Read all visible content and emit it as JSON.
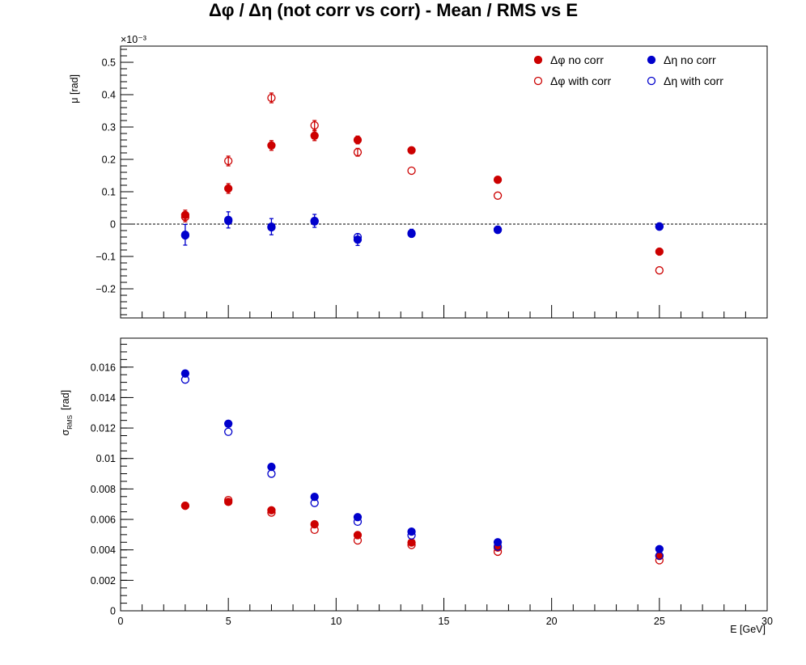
{
  "title": "Δφ / Δη  (not corr vs corr)  -  Mean / RMS vs E",
  "colors": {
    "red": "#cc0000",
    "blue": "#0000cc"
  },
  "chart_data": [
    {
      "type": "scatter",
      "ylabel": "μ  [rad]",
      "yexponent": "×10⁻³",
      "xlim": [
        0,
        30
      ],
      "ylim": [
        -0.29,
        0.55
      ],
      "yticks": [
        -0.2,
        -0.1,
        0,
        0.1,
        0.2,
        0.3,
        0.4,
        0.5
      ],
      "ytick_labels": [
        "−0.2",
        "−0.1",
        "0",
        "0.1",
        "0.2",
        "0.3",
        "0.4",
        "0.5"
      ],
      "reference_line_y": 0,
      "legend": "top-right",
      "series": [
        {
          "name": "Δφ no corr",
          "color": "#cc0000",
          "marker": "filled",
          "x": [
            3,
            5,
            7,
            9,
            11,
            13.5,
            17.5,
            25
          ],
          "y": [
            0.028,
            0.11,
            0.243,
            0.273,
            0.26,
            0.228,
            0.137,
            -0.085
          ],
          "err": [
            0.015,
            0.015,
            0.015,
            0.015,
            0.012,
            0.01,
            0.007,
            0.007
          ]
        },
        {
          "name": "Δφ with corr",
          "color": "#cc0000",
          "marker": "open",
          "x": [
            3,
            5,
            7,
            9,
            11,
            13.5,
            17.5,
            25
          ],
          "y": [
            0.022,
            0.195,
            0.39,
            0.305,
            0.222,
            0.165,
            0.088,
            -0.143
          ],
          "err": [
            0.015,
            0.015,
            0.015,
            0.015,
            0.012,
            0.0,
            0.0,
            0.0
          ]
        },
        {
          "name": "Δη no corr",
          "color": "#0000cc",
          "marker": "filled",
          "x": [
            3,
            5,
            7,
            9,
            11,
            13.5,
            17.5,
            25
          ],
          "y": [
            -0.033,
            0.013,
            -0.008,
            0.01,
            -0.048,
            -0.028,
            -0.017,
            -0.007
          ],
          "err": [
            0.032,
            0.025,
            0.025,
            0.02,
            0.018,
            0.012,
            0.008,
            0.006
          ]
        },
        {
          "name": "Δη with corr",
          "color": "#0000cc",
          "marker": "open",
          "x": [
            3,
            5,
            7,
            9,
            11,
            13.5,
            17.5,
            25
          ],
          "y": [
            -0.035,
            0.01,
            -0.01,
            0.008,
            -0.04,
            -0.03,
            -0.018,
            -0.008
          ],
          "err": [
            0.0,
            0.0,
            0.0,
            0.0,
            0.0,
            0.0,
            0.0,
            0.0
          ]
        }
      ]
    },
    {
      "type": "scatter",
      "ylabel": "σ",
      "ylabel_sub": "RMS",
      "ylabel_unit": "[rad]",
      "xlabel": "E  [GeV]",
      "xlim": [
        0,
        30
      ],
      "ylim": [
        0,
        0.0179
      ],
      "xticks": [
        0,
        5,
        10,
        15,
        20,
        25,
        30
      ],
      "xtick_labels": [
        "0",
        "5",
        "10",
        "15",
        "20",
        "25",
        "30"
      ],
      "yticks": [
        0,
        0.002,
        0.004,
        0.006,
        0.008,
        0.01,
        0.012,
        0.014,
        0.016
      ],
      "ytick_labels": [
        "0",
        "0.002",
        "0.004",
        "0.006",
        "0.008",
        "0.01",
        "0.012",
        "0.014",
        "0.016"
      ],
      "series": [
        {
          "name": "Δφ no corr",
          "color": "#cc0000",
          "marker": "filled",
          "x": [
            3,
            5,
            7,
            9,
            11,
            13.5,
            17.5,
            25
          ],
          "y": [
            0.0069,
            0.00715,
            0.0066,
            0.00568,
            0.00497,
            0.00448,
            0.00415,
            0.0036
          ]
        },
        {
          "name": "Δφ with corr",
          "color": "#cc0000",
          "marker": "open",
          "x": [
            3,
            5,
            7,
            9,
            11,
            13.5,
            17.5,
            25
          ],
          "y": [
            0.0069,
            0.00727,
            0.00645,
            0.00532,
            0.00462,
            0.00432,
            0.00388,
            0.00332
          ]
        },
        {
          "name": "Δη no corr",
          "color": "#0000cc",
          "marker": "filled",
          "x": [
            3,
            5,
            7,
            9,
            11,
            13.5,
            17.5,
            25
          ],
          "y": [
            0.01558,
            0.01228,
            0.00945,
            0.00748,
            0.00615,
            0.0052,
            0.0045,
            0.00405
          ]
        },
        {
          "name": "Δη with corr",
          "color": "#0000cc",
          "marker": "open",
          "x": [
            3,
            5,
            7,
            9,
            11,
            13.5,
            17.5,
            25
          ],
          "y": [
            0.01518,
            0.01175,
            0.009,
            0.00708,
            0.00585,
            0.00495,
            0.00422,
            0.00362
          ]
        }
      ]
    }
  ]
}
